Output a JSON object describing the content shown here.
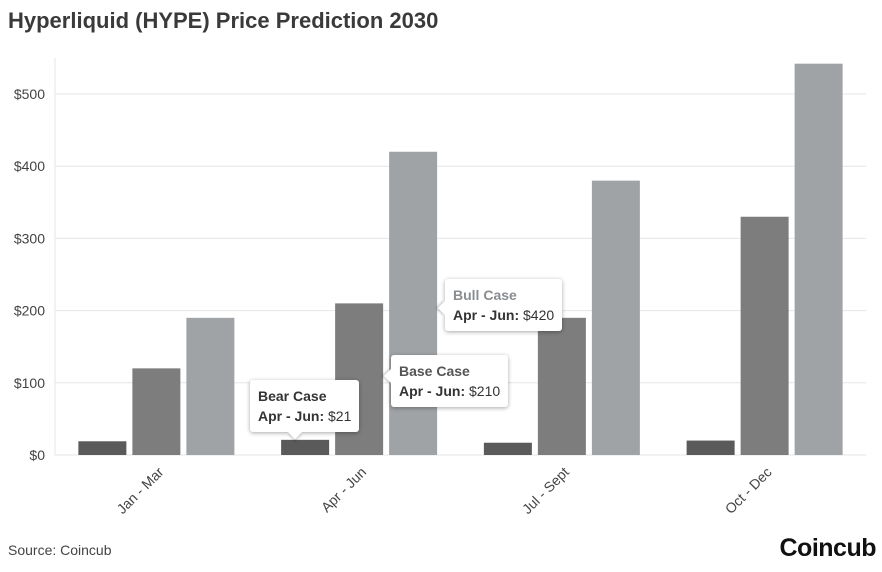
{
  "title": "Hyperliquid (HYPE) Price Prediction 2030",
  "source": "Source: Coincub",
  "logo": "Coincub",
  "colors": {
    "bear": "#5a5a5a",
    "base": "#7d7d7d",
    "bull": "#a0a3a6",
    "grid": "#e6e6e6"
  },
  "chart_data": {
    "type": "bar",
    "title": "Hyperliquid (HYPE) Price Prediction 2030",
    "categories": [
      "Jan - Mar",
      "Apr - Jun",
      "Jul - Sept",
      "Oct - Dec"
    ],
    "series": [
      {
        "name": "Bear Case",
        "values": [
          19,
          21,
          17,
          20
        ]
      },
      {
        "name": "Base Case",
        "values": [
          120,
          210,
          190,
          330
        ]
      },
      {
        "name": "Bull Case",
        "values": [
          190,
          420,
          380,
          542
        ]
      }
    ],
    "yticks": [
      "$0",
      "$100",
      "$200",
      "$300",
      "$400",
      "$500"
    ],
    "ylim": [
      0,
      550
    ],
    "grid": true,
    "legend": "none",
    "tooltips": [
      {
        "series": "Bear Case",
        "label": "Apr - Jun:",
        "value": "$21"
      },
      {
        "series": "Base Case",
        "label": "Apr - Jun:",
        "value": "$210"
      },
      {
        "series": "Bull Case",
        "label": "Apr - Jun:",
        "value": "$420"
      }
    ]
  }
}
